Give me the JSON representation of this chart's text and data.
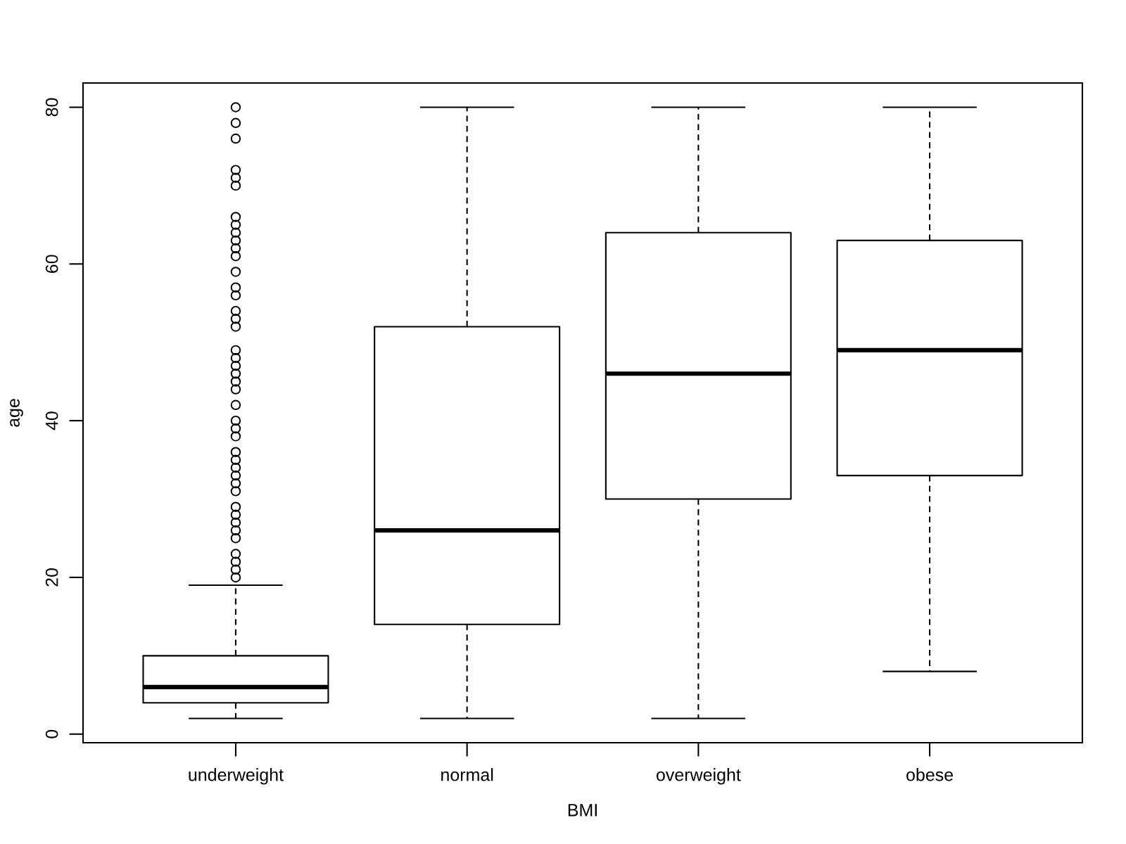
{
  "chart_data": {
    "type": "box",
    "xlabel": "BMI",
    "ylabel": "age",
    "categories": [
      "underweight",
      "normal",
      "overweight",
      "obese"
    ],
    "boxes": [
      {
        "low": 2,
        "q1": 4,
        "median": 6,
        "q3": 10,
        "high": 19,
        "outliers": [
          80,
          78,
          76,
          72,
          71,
          70,
          66,
          65,
          64,
          63,
          62,
          61,
          59,
          57,
          56,
          54,
          53,
          52,
          49,
          48,
          47,
          46,
          45,
          44,
          42,
          40,
          39,
          38,
          36,
          35,
          34,
          33,
          32,
          31,
          29,
          28,
          27,
          26,
          25,
          23,
          22,
          21,
          20
        ]
      },
      {
        "low": 2,
        "q1": 14,
        "median": 26,
        "q3": 52,
        "high": 80
      },
      {
        "low": 2,
        "q1": 30,
        "median": 46,
        "q3": 64,
        "high": 80
      },
      {
        "low": 8,
        "q1": 33,
        "median": 49,
        "q3": 63,
        "high": 80
      }
    ],
    "ylim": [
      -1.1,
      83.1
    ],
    "yticks": [
      0,
      20,
      40,
      60,
      80
    ]
  }
}
